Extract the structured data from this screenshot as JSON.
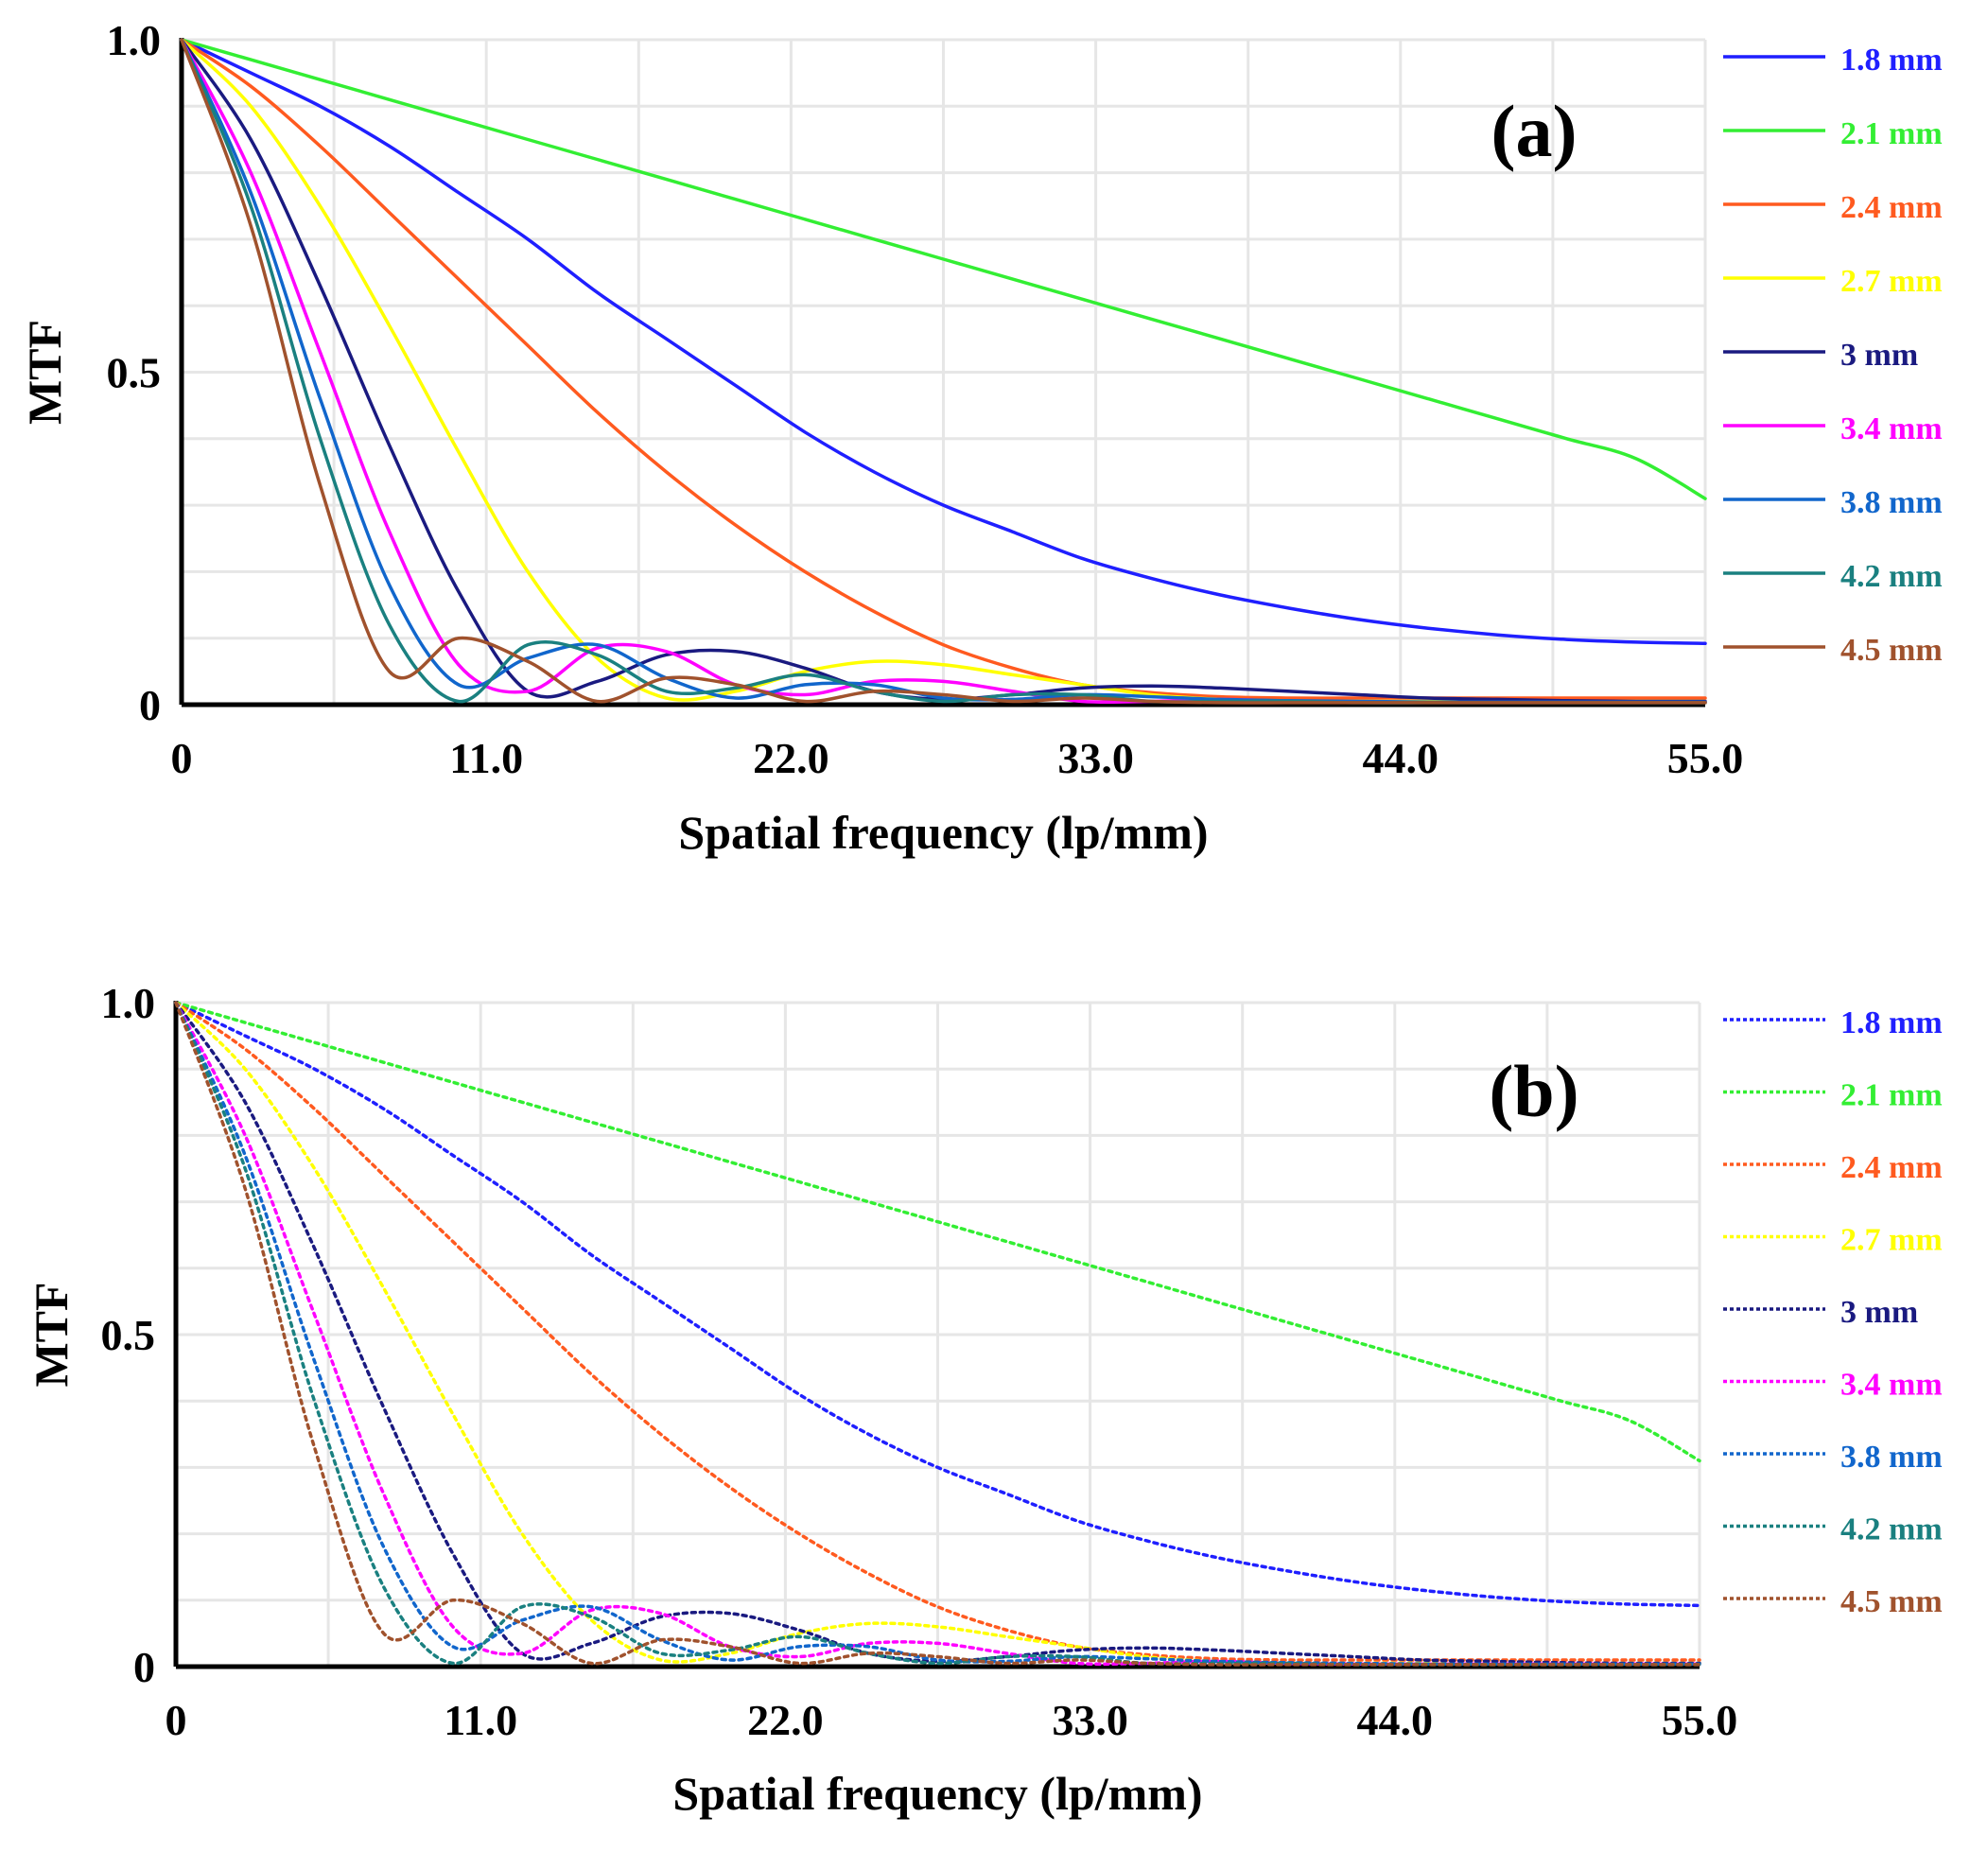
{
  "chart_data": [
    {
      "type": "line",
      "panel_label": "(a)",
      "line_style": "solid",
      "xlabel": "Spatial frequency (lp/mm)",
      "ylabel": "MTF",
      "xlim": [
        0,
        55
      ],
      "ylim": [
        0,
        1
      ],
      "x_tick_labels": [
        "0",
        "11.0",
        "22.0",
        "33.0",
        "44.0",
        "55.0"
      ],
      "y_tick_labels": [
        "0",
        "0.5",
        "1.0"
      ],
      "legend_position": "right",
      "x": [
        0,
        2.5,
        5,
        7.5,
        10,
        12.5,
        15,
        17.5,
        20,
        22.5,
        25,
        27.5,
        30,
        32.5,
        35,
        37.5,
        40,
        42.5,
        45,
        47.5,
        50,
        52.5,
        55
      ],
      "series": [
        {
          "name": "1.8 mm",
          "color": "#1f1fff",
          "values": [
            1.0,
            0.95,
            0.9,
            0.84,
            0.77,
            0.7,
            0.62,
            0.55,
            0.48,
            0.41,
            0.35,
            0.3,
            0.26,
            0.22,
            0.19,
            0.165,
            0.145,
            0.128,
            0.115,
            0.105,
            0.098,
            0.094,
            0.092
          ]
        },
        {
          "name": "2.1 mm",
          "color": "#33ee33",
          "values": [
            1.0,
            0.97,
            0.94,
            0.91,
            0.88,
            0.85,
            0.82,
            0.79,
            0.76,
            0.73,
            0.7,
            0.67,
            0.64,
            0.61,
            0.58,
            0.55,
            0.52,
            0.49,
            0.46,
            0.43,
            0.4,
            0.37,
            0.31
          ]
        },
        {
          "name": "2.4 mm",
          "color": "#ff5a1f",
          "values": [
            1.0,
            0.93,
            0.84,
            0.74,
            0.64,
            0.54,
            0.44,
            0.35,
            0.27,
            0.2,
            0.14,
            0.09,
            0.055,
            0.03,
            0.018,
            0.012,
            0.01,
            0.01,
            0.01,
            0.01,
            0.01,
            0.01,
            0.01
          ]
        },
        {
          "name": "2.7 mm",
          "color": "#ffff00",
          "values": [
            1.0,
            0.9,
            0.75,
            0.57,
            0.38,
            0.2,
            0.07,
            0.01,
            0.02,
            0.05,
            0.065,
            0.06,
            0.045,
            0.03,
            0.015,
            0.008,
            0.005,
            0.005,
            0.005,
            0.005,
            0.005,
            0.005,
            0.005
          ]
        },
        {
          "name": "3 mm",
          "color": "#1a1a80",
          "values": [
            1.0,
            0.85,
            0.63,
            0.39,
            0.17,
            0.02,
            0.035,
            0.075,
            0.08,
            0.055,
            0.02,
            0.008,
            0.015,
            0.025,
            0.028,
            0.025,
            0.02,
            0.015,
            0.01,
            0.008,
            0.006,
            0.005,
            0.005
          ]
        },
        {
          "name": "3.4 mm",
          "color": "#ff00ff",
          "values": [
            1.0,
            0.8,
            0.53,
            0.26,
            0.06,
            0.02,
            0.085,
            0.08,
            0.03,
            0.015,
            0.035,
            0.035,
            0.02,
            0.005,
            0.005,
            0.008,
            0.005,
            0.004,
            0.004,
            0.004,
            0.004,
            0.004,
            0.004
          ]
        },
        {
          "name": "3.8 mm",
          "color": "#1166cc",
          "values": [
            1.0,
            0.77,
            0.46,
            0.18,
            0.03,
            0.07,
            0.09,
            0.04,
            0.01,
            0.03,
            0.03,
            0.01,
            0.008,
            0.015,
            0.012,
            0.008,
            0.006,
            0.005,
            0.004,
            0.004,
            0.004,
            0.004,
            0.004
          ]
        },
        {
          "name": "4.2 mm",
          "color": "#1a8080",
          "values": [
            1.0,
            0.75,
            0.4,
            0.12,
            0.005,
            0.09,
            0.075,
            0.02,
            0.025,
            0.045,
            0.02,
            0.005,
            0.015,
            0.015,
            0.005,
            0.005,
            0.005,
            0.003,
            0.003,
            0.003,
            0.003,
            0.003,
            0.003
          ]
        },
        {
          "name": "4.5 mm",
          "color": "#a0522d",
          "values": [
            1.0,
            0.72,
            0.33,
            0.05,
            0.1,
            0.065,
            0.005,
            0.04,
            0.03,
            0.005,
            0.02,
            0.015,
            0.005,
            0.01,
            0.005,
            0.003,
            0.003,
            0.003,
            0.003,
            0.003,
            0.003,
            0.003,
            0.003
          ]
        }
      ]
    },
    {
      "type": "line",
      "panel_label": "(b)",
      "line_style": "dotted",
      "xlabel": "Spatial frequency (lp/mm)",
      "ylabel": "MTF",
      "xlim": [
        0,
        55
      ],
      "ylim": [
        0,
        1
      ],
      "x_tick_labels": [
        "0",
        "11.0",
        "22.0",
        "33.0",
        "44.0",
        "55.0"
      ],
      "y_tick_labels": [
        "0",
        "0.5",
        "1.0"
      ],
      "legend_position": "right",
      "x": [
        0,
        2.5,
        5,
        7.5,
        10,
        12.5,
        15,
        17.5,
        20,
        22.5,
        25,
        27.5,
        30,
        32.5,
        35,
        37.5,
        40,
        42.5,
        45,
        47.5,
        50,
        52.5,
        55
      ],
      "series": [
        {
          "name": "1.8 mm",
          "color": "#1f1fff",
          "values": [
            1.0,
            0.95,
            0.9,
            0.84,
            0.77,
            0.7,
            0.62,
            0.55,
            0.48,
            0.41,
            0.35,
            0.3,
            0.26,
            0.22,
            0.19,
            0.165,
            0.145,
            0.128,
            0.115,
            0.105,
            0.098,
            0.094,
            0.092
          ]
        },
        {
          "name": "2.1 mm",
          "color": "#33ee33",
          "values": [
            1.0,
            0.97,
            0.94,
            0.91,
            0.88,
            0.85,
            0.82,
            0.79,
            0.76,
            0.73,
            0.7,
            0.67,
            0.64,
            0.61,
            0.58,
            0.55,
            0.52,
            0.49,
            0.46,
            0.43,
            0.4,
            0.37,
            0.31
          ]
        },
        {
          "name": "2.4 mm",
          "color": "#ff5a1f",
          "values": [
            1.0,
            0.93,
            0.84,
            0.74,
            0.64,
            0.54,
            0.44,
            0.35,
            0.27,
            0.2,
            0.14,
            0.09,
            0.055,
            0.03,
            0.018,
            0.012,
            0.01,
            0.01,
            0.01,
            0.01,
            0.01,
            0.01,
            0.01
          ]
        },
        {
          "name": "2.7 mm",
          "color": "#ffff00",
          "values": [
            1.0,
            0.9,
            0.75,
            0.57,
            0.38,
            0.2,
            0.07,
            0.01,
            0.02,
            0.05,
            0.065,
            0.06,
            0.045,
            0.03,
            0.015,
            0.008,
            0.005,
            0.005,
            0.005,
            0.005,
            0.005,
            0.005,
            0.005
          ]
        },
        {
          "name": "3 mm",
          "color": "#1a1a80",
          "values": [
            1.0,
            0.85,
            0.63,
            0.39,
            0.17,
            0.02,
            0.035,
            0.075,
            0.08,
            0.055,
            0.02,
            0.008,
            0.015,
            0.025,
            0.028,
            0.025,
            0.02,
            0.015,
            0.01,
            0.008,
            0.006,
            0.005,
            0.005
          ]
        },
        {
          "name": "3.4 mm",
          "color": "#ff00ff",
          "values": [
            1.0,
            0.8,
            0.53,
            0.26,
            0.06,
            0.02,
            0.085,
            0.08,
            0.03,
            0.015,
            0.035,
            0.035,
            0.02,
            0.005,
            0.005,
            0.008,
            0.005,
            0.004,
            0.004,
            0.004,
            0.004,
            0.004,
            0.004
          ]
        },
        {
          "name": "3.8 mm",
          "color": "#1166cc",
          "values": [
            1.0,
            0.77,
            0.46,
            0.18,
            0.03,
            0.07,
            0.09,
            0.04,
            0.01,
            0.03,
            0.03,
            0.01,
            0.008,
            0.015,
            0.012,
            0.008,
            0.006,
            0.005,
            0.004,
            0.004,
            0.004,
            0.004,
            0.004
          ]
        },
        {
          "name": "4.2 mm",
          "color": "#1a8080",
          "values": [
            1.0,
            0.75,
            0.4,
            0.12,
            0.005,
            0.09,
            0.075,
            0.02,
            0.025,
            0.045,
            0.02,
            0.005,
            0.015,
            0.015,
            0.005,
            0.005,
            0.005,
            0.003,
            0.003,
            0.003,
            0.003,
            0.003,
            0.003
          ]
        },
        {
          "name": "4.5 mm",
          "color": "#a0522d",
          "values": [
            1.0,
            0.72,
            0.33,
            0.05,
            0.1,
            0.065,
            0.005,
            0.04,
            0.03,
            0.005,
            0.02,
            0.015,
            0.005,
            0.01,
            0.005,
            0.003,
            0.003,
            0.003,
            0.003,
            0.003,
            0.003,
            0.003,
            0.003
          ]
        }
      ]
    }
  ]
}
